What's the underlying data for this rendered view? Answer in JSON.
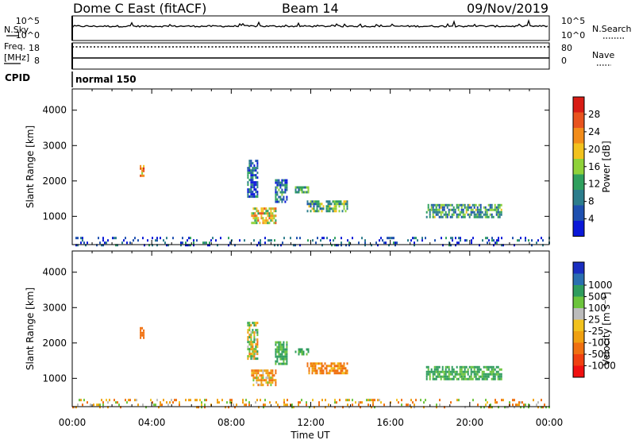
{
  "header": {
    "radar": "Dome C East (fitACF)",
    "beam": "Beam 14",
    "date": "09/Nov/2019"
  },
  "panels": {
    "nsky_label": "N.Sky",
    "nsearch_label": "N.Search",
    "freq_label_1": "Freq.",
    "freq_label_2": "[MHz]",
    "nave_label": "Nave",
    "cpid_label": "CPID",
    "cpid_value": "normal 150",
    "nsky_ticks": [
      "10^5",
      "10^0"
    ],
    "nsearch_ticks": [
      "10^5",
      "10^0"
    ],
    "freq_ticks": [
      "18",
      "8"
    ],
    "nave_ticks": [
      "80",
      "0"
    ]
  },
  "colors": {
    "power_scale": [
      "#0a18d8",
      "#1e50b0",
      "#2c7d8c",
      "#2fa05e",
      "#8fd23a",
      "#f2c21e",
      "#f28c1a",
      "#e8531e",
      "#d81c14"
    ],
    "velocity_scale": [
      "#f01010",
      "#f04010",
      "#f07010",
      "#f0a010",
      "#f2c21e",
      "#bcbcbc",
      "#6cc43c",
      "#2f9c5e",
      "#2a6fb0",
      "#1a2ec0"
    ]
  },
  "chart_data": [
    {
      "type": "heatmap",
      "name": "power",
      "ylabel": "Slant Range [km]",
      "xlabel": "Time UT",
      "x_ticks": [
        "00:00",
        "04:00",
        "08:00",
        "12:00",
        "16:00",
        "20:00",
        "00:00"
      ],
      "y_ticks": [
        1000,
        2000,
        3000,
        4000
      ],
      "xlim_hours": [
        0,
        24
      ],
      "ylim_km": [
        200,
        4600
      ],
      "colorbar": {
        "label": "Power [dB]",
        "ticks": [
          "4",
          "8",
          "12",
          "16",
          "20",
          "24",
          "28"
        ],
        "range": [
          0,
          30
        ]
      },
      "echo_regions": [
        {
          "t_start": 3.4,
          "t_end": 3.6,
          "r_start": 2150,
          "r_end": 2450,
          "level": 0.7
        },
        {
          "t_start": 8.8,
          "t_end": 9.3,
          "r_start": 1550,
          "r_end": 2600,
          "level": 0.2
        },
        {
          "t_start": 9.0,
          "t_end": 10.2,
          "r_start": 800,
          "r_end": 1250,
          "level": 0.6
        },
        {
          "t_start": 10.2,
          "t_end": 10.8,
          "r_start": 1400,
          "r_end": 2050,
          "level": 0.25
        },
        {
          "t_start": 11.2,
          "t_end": 11.9,
          "r_start": 1650,
          "r_end": 1850,
          "level": 0.35
        },
        {
          "t_start": 11.8,
          "t_end": 13.8,
          "r_start": 1150,
          "r_end": 1450,
          "level": 0.4
        },
        {
          "t_start": 17.8,
          "t_end": 21.6,
          "r_start": 1000,
          "r_end": 1350,
          "level": 0.35
        },
        {
          "t_start": 0.0,
          "t_end": 24.0,
          "r_start": 200,
          "r_end": 420,
          "level": 0.15
        }
      ]
    },
    {
      "type": "heatmap",
      "name": "velocity",
      "ylabel": "Slant Range [km]",
      "xlabel": "Time UT",
      "x_ticks": [
        "00:00",
        "04:00",
        "08:00",
        "12:00",
        "16:00",
        "20:00",
        "00:00"
      ],
      "y_ticks": [
        1000,
        2000,
        3000,
        4000
      ],
      "xlim_hours": [
        0,
        24
      ],
      "ylim_km": [
        200,
        4600
      ],
      "colorbar": {
        "label": "Velocity [m s⁻¹]",
        "ticks": [
          "-1000",
          "-500",
          "-100",
          "-25",
          "25",
          "100",
          "500",
          "1000"
        ],
        "range": [
          -1000,
          1000
        ]
      },
      "echo_regions": [
        {
          "t_start": 3.4,
          "t_end": 3.6,
          "r_start": 2150,
          "r_end": 2450,
          "value": -300
        },
        {
          "t_start": 8.8,
          "t_end": 9.3,
          "r_start": 1550,
          "r_end": 2600,
          "value": 10
        },
        {
          "t_start": 9.0,
          "t_end": 10.2,
          "r_start": 800,
          "r_end": 1250,
          "value": -80
        },
        {
          "t_start": 10.2,
          "t_end": 10.8,
          "r_start": 1400,
          "r_end": 2050,
          "value": 150
        },
        {
          "t_start": 11.2,
          "t_end": 11.9,
          "r_start": 1650,
          "r_end": 1850,
          "value": 150
        },
        {
          "t_start": 11.8,
          "t_end": 13.8,
          "r_start": 1150,
          "r_end": 1450,
          "value": -120
        },
        {
          "t_start": 17.8,
          "t_end": 21.6,
          "r_start": 1000,
          "r_end": 1350,
          "value": 150
        },
        {
          "t_start": 0.0,
          "t_end": 24.0,
          "r_start": 200,
          "r_end": 420,
          "value": -60
        }
      ]
    }
  ]
}
